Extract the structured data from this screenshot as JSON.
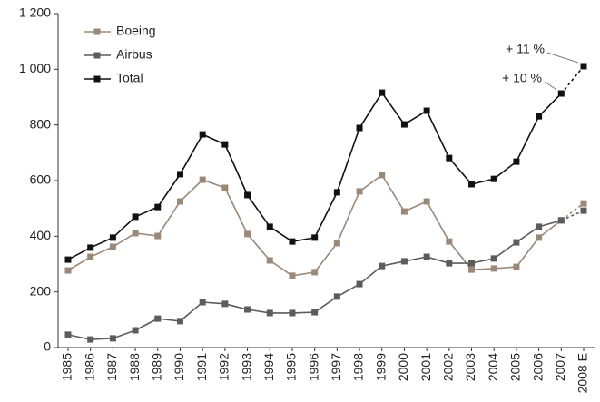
{
  "chart_data": {
    "type": "line",
    "categories": [
      "1985",
      "1986",
      "1987",
      "1988",
      "1989",
      "1990",
      "1991",
      "1992",
      "1993",
      "1994",
      "1995",
      "1996",
      "1997",
      "1998",
      "1999",
      "2000",
      "2001",
      "2002",
      "2003",
      "2004",
      "2005",
      "2006",
      "2007",
      "2008 E"
    ],
    "series": [
      {
        "name": "Boeing",
        "color": "#9a8878",
        "values": [
          277,
          326,
          362,
          411,
          401,
          525,
          603,
          574,
          408,
          313,
          258,
          271,
          375,
          561,
          620,
          489,
          525,
          381,
          280,
          284,
          290,
          395,
          457,
          518
        ]
      },
      {
        "name": "Airbus",
        "color": "#5c5c5c",
        "values": [
          46,
          29,
          33,
          62,
          104,
          95,
          163,
          157,
          137,
          124,
          124,
          127,
          183,
          228,
          293,
          310,
          326,
          303,
          303,
          320,
          378,
          434,
          457,
          492
        ]
      },
      {
        "name": "Total",
        "color": "#111111",
        "values": [
          316,
          359,
          395,
          470,
          505,
          623,
          766,
          730,
          548,
          434,
          381,
          395,
          558,
          789,
          916,
          802,
          851,
          681,
          587,
          606,
          668,
          831,
          913,
          1011
        ]
      }
    ],
    "ylim": [
      0,
      1200
    ],
    "yticks": [
      0,
      200,
      400,
      600,
      800,
      {
        "value": 1000,
        "label": "1 000"
      },
      {
        "value": 1200,
        "label": "1 200"
      }
    ],
    "annotations": [
      "+ 11 %",
      "+ 10 %"
    ],
    "legend": "top-left"
  }
}
